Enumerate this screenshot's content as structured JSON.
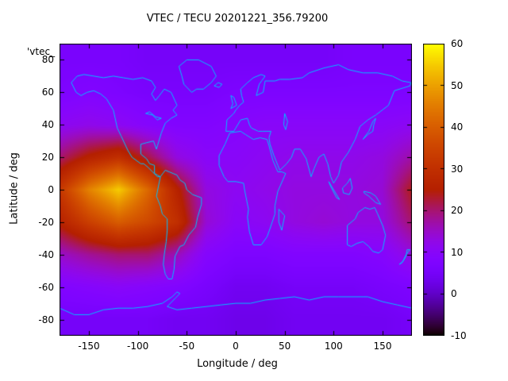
{
  "title": "VTEC / TECU 20201221_356.79200",
  "xlabel": "Longitude / deg",
  "ylabel": "Latitude / deg",
  "key_label": "'vtec_",
  "colors": {
    "background": "#ffffff",
    "coastline": "#00c0ff",
    "border": "#000000",
    "text": "#000000"
  },
  "chart_data": {
    "type": "heatmap",
    "title": "VTEC / TECU 20201221_356.79200",
    "xlabel": "Longitude / deg",
    "ylabel": "Latitude / deg",
    "xlim": [
      -180,
      180
    ],
    "ylim": [
      -90,
      90
    ],
    "xticks": [
      -150,
      -100,
      -50,
      0,
      50,
      100,
      150
    ],
    "yticks": [
      -80,
      -60,
      -40,
      -20,
      0,
      20,
      40,
      60,
      80
    ],
    "grid_on": false,
    "legend_position": "top-left",
    "colorbar": {
      "min": -10,
      "max": 60,
      "ticks": [
        -10,
        0,
        10,
        20,
        30,
        40,
        50,
        60
      ],
      "palette": "gnuplot-traditional-pm3d"
    },
    "grid": {
      "lons": [
        -180,
        -150,
        -120,
        -90,
        -60,
        -30,
        0,
        30,
        60,
        90,
        120,
        150,
        180
      ],
      "lats": [
        -80,
        -60,
        -40,
        -20,
        0,
        20,
        40,
        60,
        80
      ],
      "values_tecu": [
        [
          5,
          5,
          5,
          5,
          4,
          4,
          3,
          3,
          4,
          4,
          4,
          4,
          5
        ],
        [
          8,
          9,
          10,
          9,
          8,
          6,
          4,
          4,
          5,
          5,
          5,
          6,
          7
        ],
        [
          15,
          18,
          20,
          20,
          16,
          9,
          7,
          7,
          8,
          8,
          8,
          9,
          13
        ],
        [
          26,
          34,
          40,
          36,
          30,
          14,
          10,
          11,
          13,
          14,
          13,
          13,
          20
        ],
        [
          32,
          46,
          55,
          42,
          26,
          13,
          11,
          12,
          13,
          13,
          13,
          14,
          24
        ],
        [
          20,
          26,
          30,
          22,
          13,
          10,
          10,
          11,
          12,
          12,
          12,
          13,
          17
        ],
        [
          11,
          12,
          11,
          9,
          8,
          8,
          9,
          10,
          10,
          10,
          10,
          10,
          11
        ],
        [
          7,
          8,
          7,
          6,
          6,
          6,
          7,
          7,
          7,
          7,
          7,
          7,
          7
        ],
        [
          6,
          6,
          6,
          5,
          5,
          5,
          5,
          5,
          5,
          5,
          6,
          6,
          6
        ]
      ]
    },
    "coastlines": [
      [
        [
          -168,
          66
        ],
        [
          -163,
          60
        ],
        [
          -158,
          58
        ],
        [
          -152,
          60
        ],
        [
          -145,
          61
        ],
        [
          -138,
          59
        ],
        [
          -132,
          56
        ],
        [
          -125,
          49
        ],
        [
          -121,
          38
        ],
        [
          -117,
          33
        ],
        [
          -110,
          24
        ],
        [
          -106,
          20
        ],
        [
          -97,
          16
        ],
        [
          -94,
          16
        ],
        [
          -90,
          14
        ],
        [
          -85,
          11
        ],
        [
          -80,
          8
        ],
        [
          -77,
          8
        ],
        [
          -80,
          9
        ],
        [
          -83,
          10
        ],
        [
          -83,
          15
        ],
        [
          -88,
          16
        ],
        [
          -91,
          19
        ],
        [
          -97,
          22
        ],
        [
          -97,
          28
        ],
        [
          -91,
          29
        ],
        [
          -84,
          30
        ],
        [
          -81,
          25
        ],
        [
          -80,
          27
        ],
        [
          -76,
          35
        ],
        [
          -72,
          41
        ],
        [
          -66,
          44
        ],
        [
          -60,
          46
        ],
        [
          -64,
          49
        ],
        [
          -60,
          52
        ],
        [
          -66,
          60
        ],
        [
          -73,
          62
        ],
        [
          -78,
          58
        ],
        [
          -82,
          55
        ],
        [
          -86,
          59
        ],
        [
          -82,
          63
        ],
        [
          -86,
          67
        ],
        [
          -95,
          69
        ],
        [
          -105,
          68
        ],
        [
          -115,
          69
        ],
        [
          -125,
          70
        ],
        [
          -135,
          69
        ],
        [
          -145,
          70
        ],
        [
          -155,
          71
        ],
        [
          -162,
          70
        ],
        [
          -168,
          66
        ]
      ],
      [
        [
          -77,
          8
        ],
        [
          -79,
          2
        ],
        [
          -81,
          -4
        ],
        [
          -77,
          -10
        ],
        [
          -75,
          -15
        ],
        [
          -70,
          -18
        ],
        [
          -70,
          -25
        ],
        [
          -71,
          -32
        ],
        [
          -73,
          -40
        ],
        [
          -74,
          -46
        ],
        [
          -72,
          -52
        ],
        [
          -69,
          -55
        ],
        [
          -65,
          -55
        ],
        [
          -63,
          -49
        ],
        [
          -62,
          -41
        ],
        [
          -57,
          -35
        ],
        [
          -53,
          -34
        ],
        [
          -48,
          -28
        ],
        [
          -41,
          -23
        ],
        [
          -39,
          -17
        ],
        [
          -35,
          -9
        ],
        [
          -35,
          -5
        ],
        [
          -44,
          -3
        ],
        [
          -50,
          0
        ],
        [
          -52,
          4
        ],
        [
          -57,
          6
        ],
        [
          -60,
          9
        ],
        [
          -64,
          10
        ],
        [
          -68,
          11
        ],
        [
          -72,
          12
        ],
        [
          -77,
          8
        ]
      ],
      [
        [
          -45,
          60
        ],
        [
          -53,
          65
        ],
        [
          -55,
          70
        ],
        [
          -58,
          76
        ],
        [
          -50,
          80
        ],
        [
          -38,
          80
        ],
        [
          -25,
          76
        ],
        [
          -20,
          70
        ],
        [
          -25,
          66
        ],
        [
          -33,
          62
        ],
        [
          -40,
          62
        ],
        [
          -45,
          60
        ]
      ],
      [
        [
          -22,
          64
        ],
        [
          -18,
          66
        ],
        [
          -14,
          65
        ],
        [
          -17,
          63
        ],
        [
          -22,
          64
        ]
      ],
      [
        [
          -5,
          50
        ],
        [
          -3,
          53
        ],
        [
          -5,
          58
        ],
        [
          -2,
          57
        ],
        [
          1,
          52
        ],
        [
          -5,
          50
        ]
      ],
      [
        [
          -10,
          36
        ],
        [
          -9,
          43
        ],
        [
          -2,
          47
        ],
        [
          0,
          49
        ],
        [
          4,
          52
        ],
        [
          8,
          54
        ],
        [
          6,
          58
        ],
        [
          5,
          62
        ],
        [
          12,
          66
        ],
        [
          18,
          69
        ],
        [
          26,
          71
        ],
        [
          30,
          70
        ],
        [
          24,
          65
        ],
        [
          21,
          58
        ],
        [
          28,
          60
        ],
        [
          30,
          67
        ],
        [
          40,
          67
        ],
        [
          45,
          68
        ],
        [
          55,
          68
        ],
        [
          68,
          69
        ],
        [
          75,
          72
        ],
        [
          90,
          75
        ],
        [
          105,
          77
        ],
        [
          115,
          74
        ],
        [
          130,
          72
        ],
        [
          145,
          72
        ],
        [
          160,
          70
        ],
        [
          170,
          67
        ],
        [
          179,
          66
        ],
        [
          178,
          64
        ],
        [
          162,
          61
        ],
        [
          156,
          52
        ],
        [
          143,
          46
        ],
        [
          135,
          43
        ],
        [
          127,
          39
        ],
        [
          122,
          31
        ],
        [
          115,
          23
        ],
        [
          108,
          17
        ],
        [
          105,
          9
        ],
        [
          100,
          4
        ],
        [
          97,
          8
        ],
        [
          94,
          16
        ],
        [
          90,
          22
        ],
        [
          85,
          20
        ],
        [
          80,
          13
        ],
        [
          77,
          8
        ],
        [
          72,
          19
        ],
        [
          66,
          25
        ],
        [
          60,
          25
        ],
        [
          57,
          20
        ],
        [
          52,
          16
        ],
        [
          45,
          12
        ],
        [
          43,
          15
        ],
        [
          39,
          21
        ],
        [
          35,
          28
        ],
        [
          34,
          32
        ],
        [
          36,
          36
        ],
        [
          30,
          36
        ],
        [
          27,
          36
        ],
        [
          23,
          36
        ],
        [
          16,
          38
        ],
        [
          14,
          40
        ],
        [
          12,
          44
        ],
        [
          5,
          43
        ],
        [
          0,
          38
        ],
        [
          -2,
          36
        ],
        [
          -6,
          36
        ],
        [
          -10,
          36
        ]
      ],
      [
        [
          -6,
          35
        ],
        [
          -11,
          28
        ],
        [
          -17,
          21
        ],
        [
          -17,
          15
        ],
        [
          -12,
          8
        ],
        [
          -8,
          5
        ],
        [
          0,
          5
        ],
        [
          8,
          4
        ],
        [
          9,
          0
        ],
        [
          13,
          -12
        ],
        [
          12,
          -17
        ],
        [
          14,
          -26
        ],
        [
          18,
          -34
        ],
        [
          26,
          -34
        ],
        [
          32,
          -29
        ],
        [
          35,
          -24
        ],
        [
          40,
          -15
        ],
        [
          40,
          -10
        ],
        [
          43,
          -1
        ],
        [
          51,
          10
        ],
        [
          47,
          11
        ],
        [
          43,
          11
        ],
        [
          38,
          18
        ],
        [
          34,
          27
        ],
        [
          32,
          31
        ],
        [
          25,
          32
        ],
        [
          18,
          31
        ],
        [
          10,
          34
        ],
        [
          5,
          36
        ],
        [
          -6,
          35
        ]
      ],
      [
        [
          44,
          -12
        ],
        [
          50,
          -16
        ],
        [
          47,
          -25
        ],
        [
          44,
          -20
        ],
        [
          44,
          -12
        ]
      ],
      [
        [
          50,
          47
        ],
        [
          53,
          42
        ],
        [
          51,
          37
        ],
        [
          49,
          40
        ],
        [
          50,
          47
        ]
      ],
      [
        [
          -92,
          47
        ],
        [
          -85,
          46
        ],
        [
          -80,
          43
        ],
        [
          -76,
          44
        ],
        [
          -82,
          45
        ],
        [
          -88,
          48
        ],
        [
          -92,
          47
        ]
      ],
      [
        [
          130,
          31
        ],
        [
          135,
          34
        ],
        [
          140,
          36
        ],
        [
          141,
          40
        ],
        [
          143,
          44
        ],
        [
          140,
          42
        ],
        [
          136,
          36
        ],
        [
          131,
          32
        ],
        [
          130,
          31
        ]
      ],
      [
        [
          95,
          5
        ],
        [
          102,
          -2
        ],
        [
          106,
          -6
        ],
        [
          103,
          -5
        ],
        [
          97,
          2
        ],
        [
          95,
          5
        ]
      ],
      [
        [
          109,
          1
        ],
        [
          114,
          4
        ],
        [
          117,
          7
        ],
        [
          119,
          1
        ],
        [
          116,
          -3
        ],
        [
          110,
          -2
        ],
        [
          109,
          1
        ]
      ],
      [
        [
          131,
          -1
        ],
        [
          138,
          -2
        ],
        [
          143,
          -4
        ],
        [
          148,
          -9
        ],
        [
          143,
          -8
        ],
        [
          136,
          -4
        ],
        [
          131,
          -2
        ],
        [
          131,
          -1
        ]
      ],
      [
        [
          114,
          -22
        ],
        [
          114,
          -34
        ],
        [
          118,
          -35
        ],
        [
          124,
          -33
        ],
        [
          130,
          -32
        ],
        [
          136,
          -35
        ],
        [
          140,
          -38
        ],
        [
          146,
          -39
        ],
        [
          150,
          -37
        ],
        [
          153,
          -28
        ],
        [
          150,
          -22
        ],
        [
          145,
          -15
        ],
        [
          142,
          -11
        ],
        [
          137,
          -12
        ],
        [
          132,
          -11
        ],
        [
          125,
          -14
        ],
        [
          122,
          -18
        ],
        [
          114,
          -22
        ]
      ],
      [
        [
          167,
          -46
        ],
        [
          171,
          -44
        ],
        [
          174,
          -41
        ],
        [
          175,
          -37
        ],
        [
          178,
          -37
        ],
        [
          174,
          -40
        ],
        [
          170,
          -45
        ],
        [
          167,
          -46
        ]
      ],
      [
        [
          -180,
          -73
        ],
        [
          -165,
          -77
        ],
        [
          -150,
          -77
        ],
        [
          -135,
          -74
        ],
        [
          -120,
          -73
        ],
        [
          -105,
          -73
        ],
        [
          -90,
          -72
        ],
        [
          -75,
          -70
        ],
        [
          -65,
          -66
        ],
        [
          -60,
          -63
        ],
        [
          -57,
          -64
        ],
        [
          -62,
          -67
        ],
        [
          -70,
          -72
        ],
        [
          -60,
          -74
        ],
        [
          -45,
          -73
        ],
        [
          -30,
          -72
        ],
        [
          -15,
          -71
        ],
        [
          0,
          -70
        ],
        [
          15,
          -70
        ],
        [
          30,
          -68
        ],
        [
          45,
          -67
        ],
        [
          60,
          -66
        ],
        [
          75,
          -68
        ],
        [
          90,
          -66
        ],
        [
          105,
          -66
        ],
        [
          120,
          -66
        ],
        [
          135,
          -66
        ],
        [
          150,
          -69
        ],
        [
          165,
          -71
        ],
        [
          180,
          -73
        ]
      ]
    ]
  }
}
